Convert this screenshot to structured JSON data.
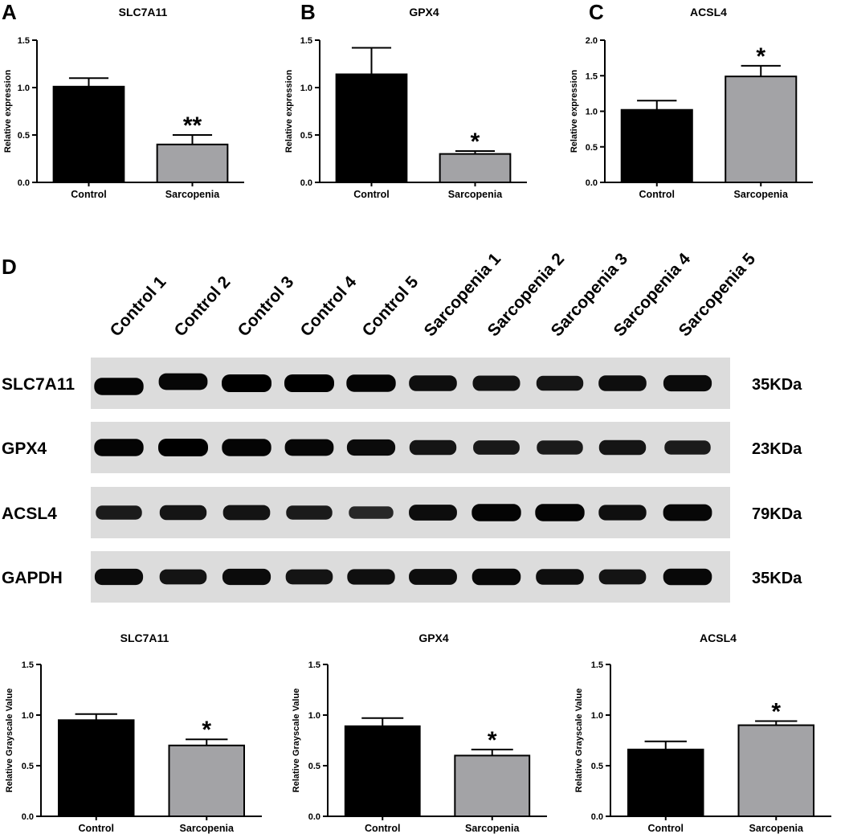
{
  "panels": [
    {
      "letter": "A"
    },
    {
      "letter": "B"
    },
    {
      "letter": "C"
    },
    {
      "letter": "D"
    }
  ],
  "chart_data": [
    {
      "type": "bar",
      "title": "SLC7A11",
      "ylabel": "Relative expression",
      "categories": [
        "Control",
        "Sarcopenia"
      ],
      "values": [
        1.01,
        0.4
      ],
      "errors": [
        0.09,
        0.1
      ],
      "significance": [
        "",
        "**"
      ],
      "colors": [
        "#000000",
        "#a3a3a6"
      ],
      "ylim": [
        0,
        1.5
      ],
      "yticks": [
        "0.0",
        "0.5",
        "1.0",
        "1.5"
      ]
    },
    {
      "type": "bar",
      "title": "GPX4",
      "ylabel": "Relative expression",
      "categories": [
        "Control",
        "Sarcopenia"
      ],
      "values": [
        1.14,
        0.3
      ],
      "errors": [
        0.28,
        0.03
      ],
      "significance": [
        "",
        "*"
      ],
      "colors": [
        "#000000",
        "#a3a3a6"
      ],
      "ylim": [
        0,
        1.5
      ],
      "yticks": [
        "0.0",
        "0.5",
        "1.0",
        "1.5"
      ]
    },
    {
      "type": "bar",
      "title": "ACSL4",
      "ylabel": "Relative expression",
      "categories": [
        "Control",
        "Sarcopenia"
      ],
      "values": [
        1.02,
        1.49
      ],
      "errors": [
        0.13,
        0.15
      ],
      "significance": [
        "",
        "*"
      ],
      "colors": [
        "#000000",
        "#a3a3a6"
      ],
      "ylim": [
        0,
        2.0
      ],
      "yticks": [
        "0.0",
        "0.5",
        "1.0",
        "1.5",
        "2.0"
      ]
    },
    {
      "type": "bar",
      "title": "SLC7A11",
      "ylabel": "Relative Grayscale Value",
      "categories": [
        "Control",
        "Sarcopenia"
      ],
      "values": [
        0.95,
        0.7
      ],
      "errors": [
        0.06,
        0.06
      ],
      "significance": [
        "",
        "*"
      ],
      "colors": [
        "#000000",
        "#a3a3a6"
      ],
      "ylim": [
        0,
        1.5
      ],
      "yticks": [
        "0.0",
        "0.5",
        "1.0",
        "1.5"
      ]
    },
    {
      "type": "bar",
      "title": "GPX4",
      "ylabel": "Relative Grayscale Value",
      "categories": [
        "Control",
        "Sarcopenia"
      ],
      "values": [
        0.89,
        0.6
      ],
      "errors": [
        0.08,
        0.06
      ],
      "significance": [
        "",
        "*"
      ],
      "colors": [
        "#000000",
        "#a3a3a6"
      ],
      "ylim": [
        0,
        1.5
      ],
      "yticks": [
        "0.0",
        "0.5",
        "1.0",
        "1.5"
      ]
    },
    {
      "type": "bar",
      "title": "ACSL4",
      "ylabel": "Relative Grayscale Value",
      "categories": [
        "Control",
        "Sarcopenia"
      ],
      "values": [
        0.66,
        0.9
      ],
      "errors": [
        0.08,
        0.04
      ],
      "significance": [
        "",
        "*"
      ],
      "colors": [
        "#000000",
        "#a3a3a6"
      ],
      "ylim": [
        0,
        1.5
      ],
      "yticks": [
        "0.0",
        "0.5",
        "1.0",
        "1.5"
      ]
    }
  ],
  "western_blot": {
    "lanes": [
      "Control 1",
      "Control 2",
      "Control 3",
      "Control 4",
      "Control 5",
      "Sarcopenia 1",
      "Sarcopenia 2",
      "Sarcopenia 3",
      "Sarcopenia 4",
      "Sarcopenia 5"
    ],
    "blots": [
      {
        "protein": "SLC7A11",
        "size": "35KDa",
        "intensity": [
          0.95,
          0.9,
          1.0,
          1.0,
          0.95,
          0.8,
          0.75,
          0.7,
          0.8,
          0.85
        ]
      },
      {
        "protein": "GPX4",
        "size": "23KDa",
        "intensity": [
          0.95,
          1.0,
          0.95,
          0.9,
          0.85,
          0.7,
          0.65,
          0.62,
          0.7,
          0.62
        ]
      },
      {
        "protein": "ACSL4",
        "size": "79KDa",
        "intensity": [
          0.62,
          0.7,
          0.72,
          0.62,
          0.45,
          0.82,
          0.95,
          0.95,
          0.78,
          0.9
        ]
      },
      {
        "protein": "GAPDH",
        "size": "35KDa",
        "intensity": [
          0.85,
          0.72,
          0.85,
          0.72,
          0.78,
          0.82,
          0.88,
          0.8,
          0.72,
          0.88
        ]
      }
    ]
  }
}
